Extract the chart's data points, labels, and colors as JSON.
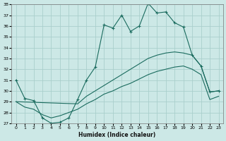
{
  "xlabel": "Humidex (Indice chaleur)",
  "bg_color": "#cce8e6",
  "grid_color": "#aacfcc",
  "line_color": "#1a6b5e",
  "xlim": [
    -0.5,
    23.5
  ],
  "ylim": [
    27,
    38
  ],
  "yticks": [
    27,
    28,
    29,
    30,
    31,
    32,
    33,
    34,
    35,
    36,
    37,
    38
  ],
  "xticks": [
    0,
    1,
    2,
    3,
    4,
    5,
    6,
    7,
    8,
    9,
    10,
    11,
    12,
    13,
    14,
    15,
    16,
    17,
    18,
    19,
    20,
    21,
    22,
    23
  ],
  "line1_x": [
    0,
    1,
    2,
    3,
    4,
    5,
    6,
    7,
    8,
    9,
    10,
    11,
    12,
    13,
    14,
    15,
    16,
    17,
    18,
    19,
    20,
    21,
    22,
    23
  ],
  "line1_y": [
    31,
    29.3,
    29.1,
    27.5,
    27.0,
    27.1,
    27.5,
    29.2,
    31.0,
    32.2,
    36.1,
    35.8,
    37.0,
    35.5,
    36.0,
    38.1,
    37.2,
    37.3,
    36.3,
    35.9,
    33.3,
    32.3,
    29.9,
    30.0
  ],
  "line2_x": [
    0,
    7,
    8,
    9,
    10,
    11,
    12,
    13,
    14,
    15,
    16,
    17,
    18,
    19,
    20,
    21,
    22,
    23
  ],
  "line2_y": [
    29.0,
    28.8,
    29.5,
    30.0,
    30.5,
    31.0,
    31.5,
    32.0,
    32.5,
    33.0,
    33.3,
    33.5,
    33.6,
    33.5,
    33.3,
    32.3,
    29.9,
    30.0
  ],
  "line3_x": [
    0,
    1,
    2,
    3,
    4,
    5,
    6,
    7,
    8,
    9,
    10,
    11,
    12,
    13,
    14,
    15,
    16,
    17,
    18,
    19,
    20,
    21,
    22,
    23
  ],
  "line3_y": [
    29.0,
    28.5,
    28.3,
    27.8,
    27.5,
    27.7,
    28.0,
    28.3,
    28.8,
    29.2,
    29.7,
    30.0,
    30.4,
    30.7,
    31.1,
    31.5,
    31.8,
    32.0,
    32.2,
    32.3,
    32.0,
    31.5,
    29.2,
    29.5
  ]
}
